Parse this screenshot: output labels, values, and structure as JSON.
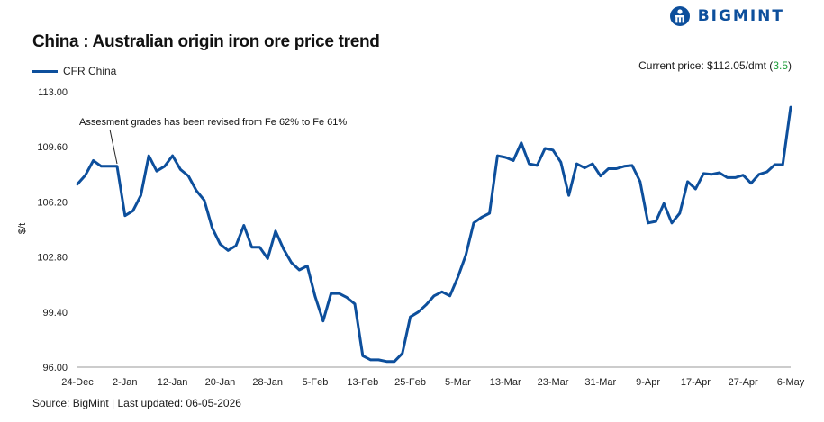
{
  "header": {
    "title": "China : Australian origin iron ore price trend",
    "current_label": "Current price: $112.05/dmt (",
    "current_change": "3.5",
    "current_close": ")",
    "legend_label": "CFR China",
    "source": "Source: BigMint | Last updated: 06-05-2026"
  },
  "logo": {
    "text": "BIGMINT",
    "icon": "bigmint-logo-icon"
  },
  "colors": {
    "line": "#0d4f9c",
    "change_positive": "#1e9e3a",
    "brand": "#0d4f9c"
  },
  "chart_data": {
    "type": "line",
    "title": "China : Australian origin iron ore price trend",
    "ylabel": "$/t",
    "xlabel": "",
    "ylim": [
      96.0,
      113.0
    ],
    "yticks": [
      "113.00",
      "109.60",
      "106.20",
      "102.80",
      "99.40",
      "96.00"
    ],
    "xtick_labels": [
      "24-Dec",
      "2-Jan",
      "12-Jan",
      "20-Jan",
      "28-Jan",
      "5-Feb",
      "13-Feb",
      "25-Feb",
      "5-Mar",
      "13-Mar",
      "23-Mar",
      "31-Mar",
      "9-Apr",
      "17-Apr",
      "27-Apr",
      "6-May"
    ],
    "grid": false,
    "legend": "top-left",
    "annotation": "Assesment grades has been revised from Fe 62% to Fe 61%",
    "series": [
      {
        "name": "CFR China",
        "values": [
          107.3,
          107.85,
          108.75,
          108.4,
          108.4,
          108.4,
          105.35,
          105.65,
          106.6,
          109.05,
          108.1,
          108.4,
          109.05,
          108.2,
          107.8,
          106.9,
          106.3,
          104.6,
          103.6,
          103.2,
          103.5,
          104.75,
          103.4,
          103.4,
          102.7,
          104.4,
          103.3,
          102.45,
          102.0,
          102.25,
          100.35,
          98.85,
          100.55,
          100.55,
          100.3,
          99.9,
          96.7,
          96.45,
          96.45,
          96.35,
          96.35,
          96.85,
          99.1,
          99.4,
          99.85,
          100.4,
          100.65,
          100.4,
          101.55,
          102.9,
          104.9,
          105.25,
          105.5,
          109.05,
          108.95,
          108.75,
          109.85,
          108.55,
          108.45,
          109.5,
          109.4,
          108.65,
          106.6,
          108.55,
          108.3,
          108.55,
          107.8,
          108.25,
          108.25,
          108.4,
          108.45,
          107.45,
          104.9,
          105.0,
          106.1,
          104.9,
          105.5,
          107.45,
          107.0,
          107.95,
          107.9,
          108.0,
          107.7,
          107.7,
          107.85,
          107.35,
          107.9,
          108.05,
          108.5,
          108.5,
          112.05
        ]
      }
    ]
  }
}
